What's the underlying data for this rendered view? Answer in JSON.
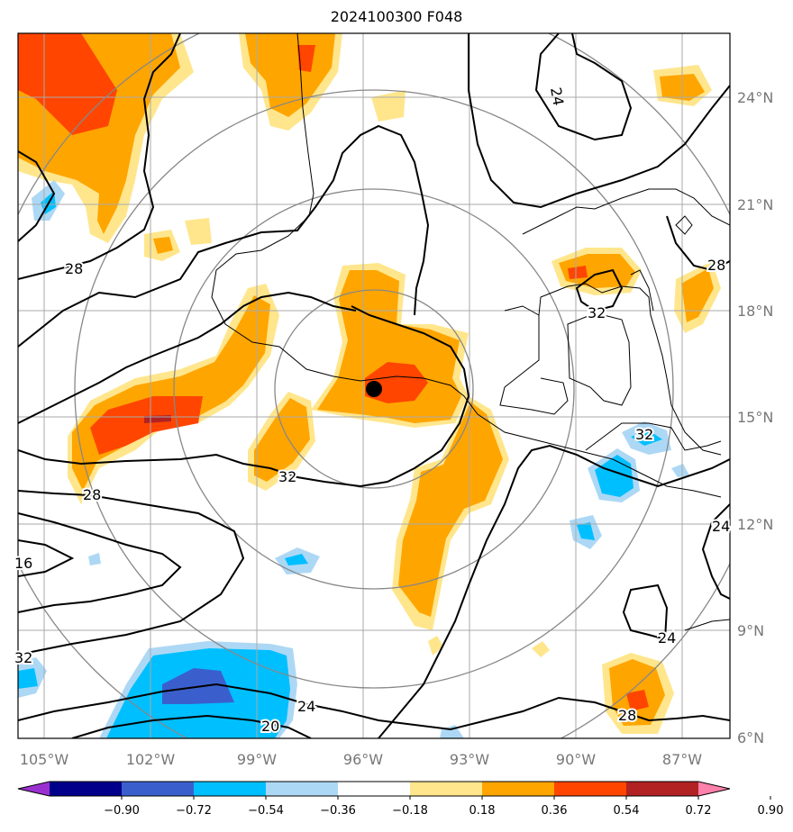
{
  "title": "2024100300 F048",
  "map": {
    "lon_ticks": [
      "105°W",
      "102°W",
      "99°W",
      "96°W",
      "93°W",
      "90°W",
      "87°W"
    ],
    "lat_ticks": [
      "24°N",
      "21°N",
      "18°N",
      "15°N",
      "12°N",
      "9°N",
      "6°N"
    ],
    "contour_labels": [
      "24",
      "28",
      "32",
      "28",
      "16",
      "32",
      "24",
      "20",
      "28",
      "32",
      "28",
      "24",
      "24",
      "32"
    ],
    "storm_center": {
      "lon": "95.6°W",
      "lat": "15.8°N"
    },
    "range_rings": 4
  },
  "colorbar": {
    "ticks": [
      "−0.90",
      "−0.72",
      "−0.54",
      "−0.36",
      "−0.18",
      "0.18",
      "0.36",
      "0.54",
      "0.72",
      "0.90"
    ],
    "colors": [
      "#9b30d0",
      "#00008b",
      "#3a5fcd",
      "#00bfff",
      "#add8f5",
      "#ffffff",
      "#ffe68c",
      "#ffa500",
      "#ff4500",
      "#b22222",
      "#ff80ab"
    ]
  },
  "colors": {
    "grid": "#aaaaaa",
    "rings": "#888888",
    "coast": "#000000",
    "ticks": "#777777"
  }
}
